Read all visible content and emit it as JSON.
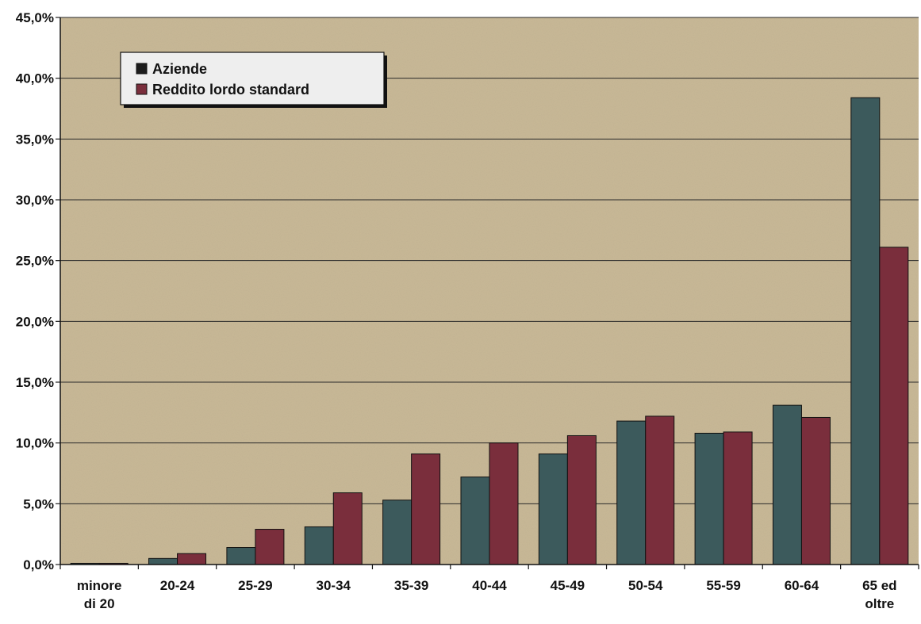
{
  "chart_data": {
    "type": "bar",
    "title": "",
    "xlabel": "",
    "ylabel": "",
    "categories": [
      [
        "minore",
        "di 20"
      ],
      [
        "20-24"
      ],
      [
        "25-29"
      ],
      [
        "30-34"
      ],
      [
        "35-39"
      ],
      [
        "40-44"
      ],
      [
        "45-49"
      ],
      [
        "50-54"
      ],
      [
        "55-59"
      ],
      [
        "60-64"
      ],
      [
        "65 ed",
        "oltre"
      ]
    ],
    "series": [
      {
        "name": "Aziende",
        "color": "#3c5a5c",
        "values": [
          0.1,
          0.5,
          1.4,
          3.1,
          5.3,
          7.2,
          9.1,
          11.8,
          10.8,
          13.1,
          38.4
        ]
      },
      {
        "name": "Reddito lordo standard",
        "color": "#7a2e3c",
        "values": [
          0.1,
          0.9,
          2.9,
          5.9,
          9.1,
          10.0,
          10.6,
          12.2,
          10.9,
          12.1,
          26.1
        ]
      }
    ],
    "ylim": [
      0,
      45
    ],
    "yticks": [
      "0,0%",
      "5,0%",
      "10,0%",
      "15,0%",
      "20,0%",
      "25,0%",
      "30,0%",
      "35,0%",
      "40,0%",
      "45,0%"
    ],
    "ytick_step": 5,
    "grid": true,
    "legend_position": "top-left",
    "plot_background": "#c9b996"
  }
}
